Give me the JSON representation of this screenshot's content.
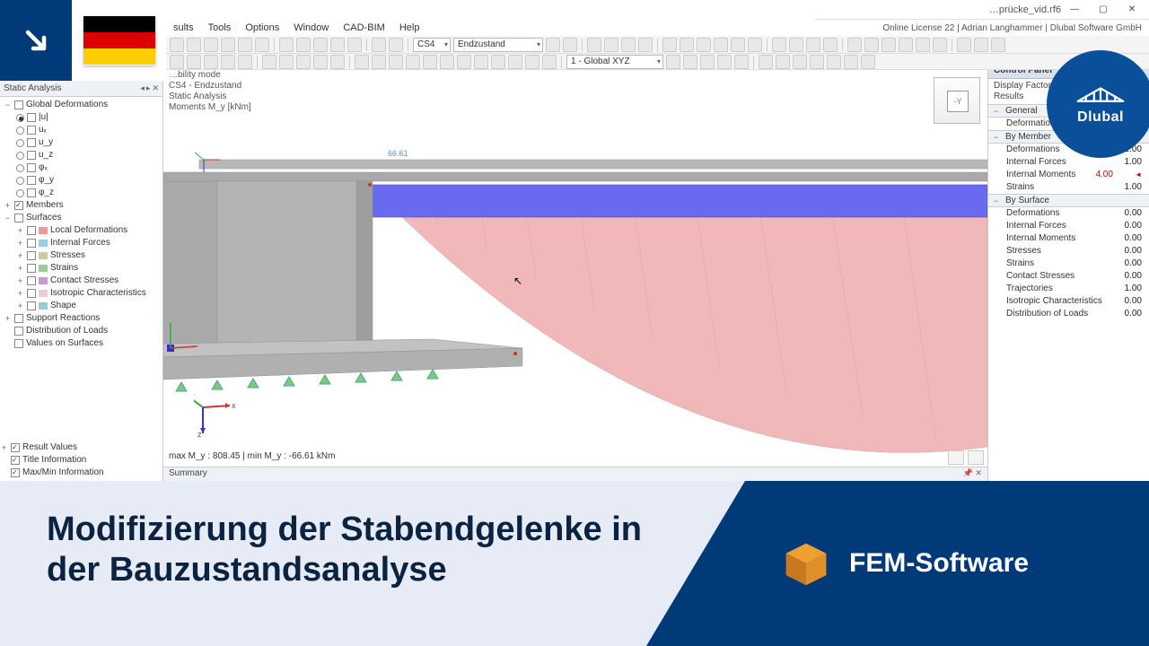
{
  "window": {
    "title": "…prücke_vid.rf6",
    "license": "Online License 22 | Adrian Langhammer | Dlubal Software GmbH"
  },
  "menus": [
    "sults",
    "Tools",
    "Options",
    "Window",
    "CAD-BIM",
    "Help"
  ],
  "toolbar": {
    "combo_cs": "CS4",
    "combo_state": "Endzustand",
    "combo_coord": "1 - Global XYZ"
  },
  "left_panel": {
    "title": "Static Analysis",
    "root": "Global Deformations",
    "radios": [
      "|u|",
      "uₓ",
      "u_y",
      "u_z",
      "φₓ",
      "φ_y",
      "φ_z"
    ],
    "radio_sel": 0,
    "members_label": "Members",
    "surfaces_label": "Surfaces",
    "surface_items": [
      "Local Deformations",
      "Internal Forces",
      "Stresses",
      "Strains",
      "Contact Stresses",
      "Isotropic Characteristics",
      "Shape"
    ],
    "support_label": "Support Reactions",
    "dist_label": "Distribution of Loads",
    "values_label": "Values on Surfaces",
    "bottom": [
      "Result Values",
      "Title Information",
      "Max/Min Information"
    ]
  },
  "viewport": {
    "info": [
      "…bility mode",
      "CS4 - Endzustand",
      "Static Analysis",
      "Moments M_y [kNm]"
    ],
    "peak_label": "66.61",
    "status": "max M_y : 808.45 | min M_y : -66.61 kNm",
    "summary": "Summary",
    "navface": "-Y",
    "axes": {
      "x": "x",
      "y": "y",
      "z": "z"
    },
    "colors": {
      "concrete": "#a9a9a9",
      "concrete_edge": "#8f8f8f",
      "beam": "#6a6af0",
      "moment_fill": "#f0b8b8",
      "moment_stroke": "#e89a9a"
    }
  },
  "control_panel": {
    "title": "Control Panel",
    "sub1": "Display Factors",
    "sub2": "Results",
    "sections": [
      {
        "title": "General",
        "rows": [
          {
            "k": "Deformations",
            "v": ""
          }
        ]
      },
      {
        "title": "By Member",
        "rows": [
          {
            "k": "Deformations",
            "v": "1.00"
          },
          {
            "k": "Internal Forces",
            "v": "1.00"
          },
          {
            "k": "Internal Moments",
            "v": "4.00",
            "hl": true
          },
          {
            "k": "Strains",
            "v": "1.00"
          }
        ]
      },
      {
        "title": "By Surface",
        "rows": [
          {
            "k": "Deformations",
            "v": "0.00"
          },
          {
            "k": "Internal Forces",
            "v": "0.00"
          },
          {
            "k": "Internal Moments",
            "v": "0.00"
          },
          {
            "k": "Stresses",
            "v": "0.00"
          },
          {
            "k": "Strains",
            "v": "0.00"
          },
          {
            "k": "Contact Stresses",
            "v": "0.00"
          },
          {
            "k": "Trajectories",
            "v": "1.00"
          },
          {
            "k": "Isotropic Characteristics",
            "v": "0.00"
          },
          {
            "k": "Distribution of Loads",
            "v": "0.00"
          }
        ]
      }
    ]
  },
  "banner": {
    "headline_l1": "Modifizierung der Stabendgelenke in",
    "headline_l2": "der Bauzustandsanalyse",
    "product": "FEM-Software",
    "brand": "Dlubal"
  },
  "flag": {
    "top": "#000000",
    "mid": "#dd0000",
    "bot": "#ffce00"
  }
}
